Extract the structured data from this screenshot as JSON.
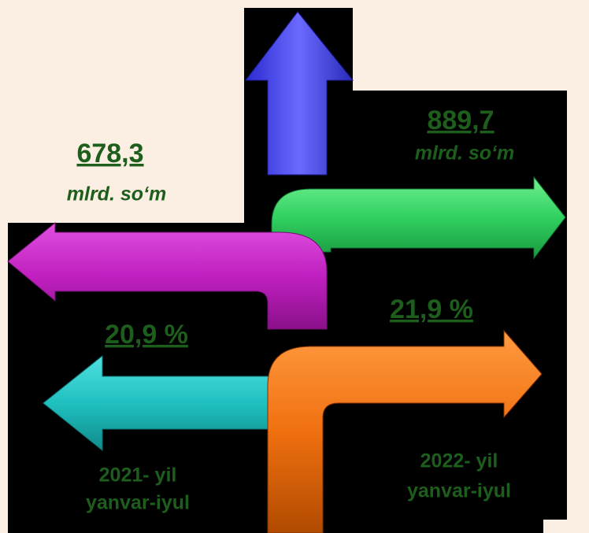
{
  "left": {
    "value": "678,3",
    "unit": "mlrd. so‘m",
    "percent": "20,9 %",
    "year": "2021- yil",
    "period": "yanvar-iyul"
  },
  "right": {
    "value": "889,7",
    "unit": "mlrd. so‘m",
    "percent": "21,9 %",
    "year": "2022- yil",
    "period": "yanvar-iyul"
  }
}
